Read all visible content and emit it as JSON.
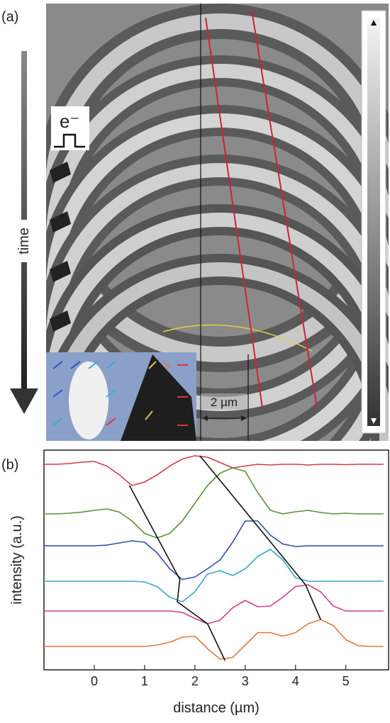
{
  "panel_a": {
    "label": "(a)",
    "time_label": "time",
    "electron_label": "e⁻",
    "scale_label": "2 µm"
  },
  "chart_data": {
    "type": "line",
    "panel_label": "(b)",
    "x_label": "distance (µm)",
    "y_label": "intensity (a.u.)",
    "x": [
      -1,
      -0.75,
      -0.5,
      -0.25,
      0,
      0.25,
      0.5,
      0.75,
      1,
      1.25,
      1.5,
      1.75,
      2,
      2.25,
      2.5,
      2.75,
      3,
      3.25,
      3.5,
      3.75,
      4,
      4.25,
      4.5,
      4.75,
      5,
      5.25,
      5.5,
      5.75
    ],
    "xlim": [
      -1,
      5.85
    ],
    "xticks": [
      0,
      1,
      2,
      3,
      4,
      5
    ],
    "ylim": [
      0,
      6.2
    ],
    "series": [
      {
        "color": "#d8384f",
        "values": [
          5.8,
          5.8,
          5.82,
          5.86,
          5.88,
          5.75,
          5.5,
          5.2,
          5.3,
          5.5,
          5.75,
          5.95,
          6.04,
          6.0,
          5.85,
          5.7,
          5.75,
          5.8,
          5.78,
          5.8,
          5.8,
          5.78,
          5.8,
          5.8,
          5.79,
          5.8,
          5.8,
          5.8
        ]
      },
      {
        "color": "#5c8f3a",
        "values": [
          4.4,
          4.4,
          4.42,
          4.45,
          4.5,
          4.54,
          4.45,
          4.2,
          3.85,
          3.72,
          3.85,
          4.2,
          4.7,
          5.2,
          5.55,
          5.7,
          5.6,
          5.0,
          4.5,
          4.4,
          4.46,
          4.5,
          4.44,
          4.4,
          4.42,
          4.4,
          4.4,
          4.4
        ]
      },
      {
        "color": "#2f4fa8",
        "values": [
          3.5,
          3.5,
          3.5,
          3.5,
          3.5,
          3.52,
          3.58,
          3.64,
          3.6,
          3.3,
          2.85,
          2.55,
          2.62,
          2.85,
          3.1,
          3.6,
          4.2,
          4.2,
          3.8,
          3.55,
          3.48,
          3.5,
          3.5,
          3.5,
          3.5,
          3.5,
          3.5,
          3.5
        ]
      },
      {
        "color": "#3aa8c8",
        "values": [
          2.5,
          2.5,
          2.5,
          2.5,
          2.5,
          2.5,
          2.5,
          2.5,
          2.48,
          2.35,
          2.05,
          1.92,
          2.2,
          2.7,
          2.8,
          2.66,
          2.85,
          3.2,
          3.4,
          3.1,
          2.6,
          2.5,
          2.5,
          2.5,
          2.5,
          2.5,
          2.5,
          2.5
        ]
      },
      {
        "color": "#d0408f",
        "values": [
          1.66,
          1.66,
          1.66,
          1.66,
          1.66,
          1.66,
          1.66,
          1.66,
          1.66,
          1.66,
          1.66,
          1.62,
          1.45,
          1.3,
          1.4,
          1.75,
          1.96,
          1.78,
          1.8,
          2.05,
          2.35,
          2.4,
          2.2,
          1.8,
          1.66,
          1.66,
          1.66,
          1.66
        ]
      },
      {
        "color": "#e2793a",
        "values": [
          0.66,
          0.66,
          0.66,
          0.66,
          0.66,
          0.66,
          0.66,
          0.66,
          0.66,
          0.7,
          0.78,
          0.92,
          0.95,
          0.6,
          0.3,
          0.35,
          0.7,
          1.05,
          1.05,
          0.95,
          1.05,
          1.3,
          1.42,
          1.25,
          0.85,
          0.68,
          0.66,
          0.66
        ]
      }
    ],
    "tracks": [
      {
        "color": "#111111",
        "x": [
          0.7,
          1.7,
          1.65,
          2.25,
          2.6
        ],
        "y": [
          5.2,
          2.55,
          1.92,
          1.3,
          0.26
        ]
      },
      {
        "color": "#111111",
        "x": [
          2.1,
          4.2,
          4.5
        ],
        "y": [
          6.04,
          2.4,
          1.42
        ]
      }
    ]
  }
}
